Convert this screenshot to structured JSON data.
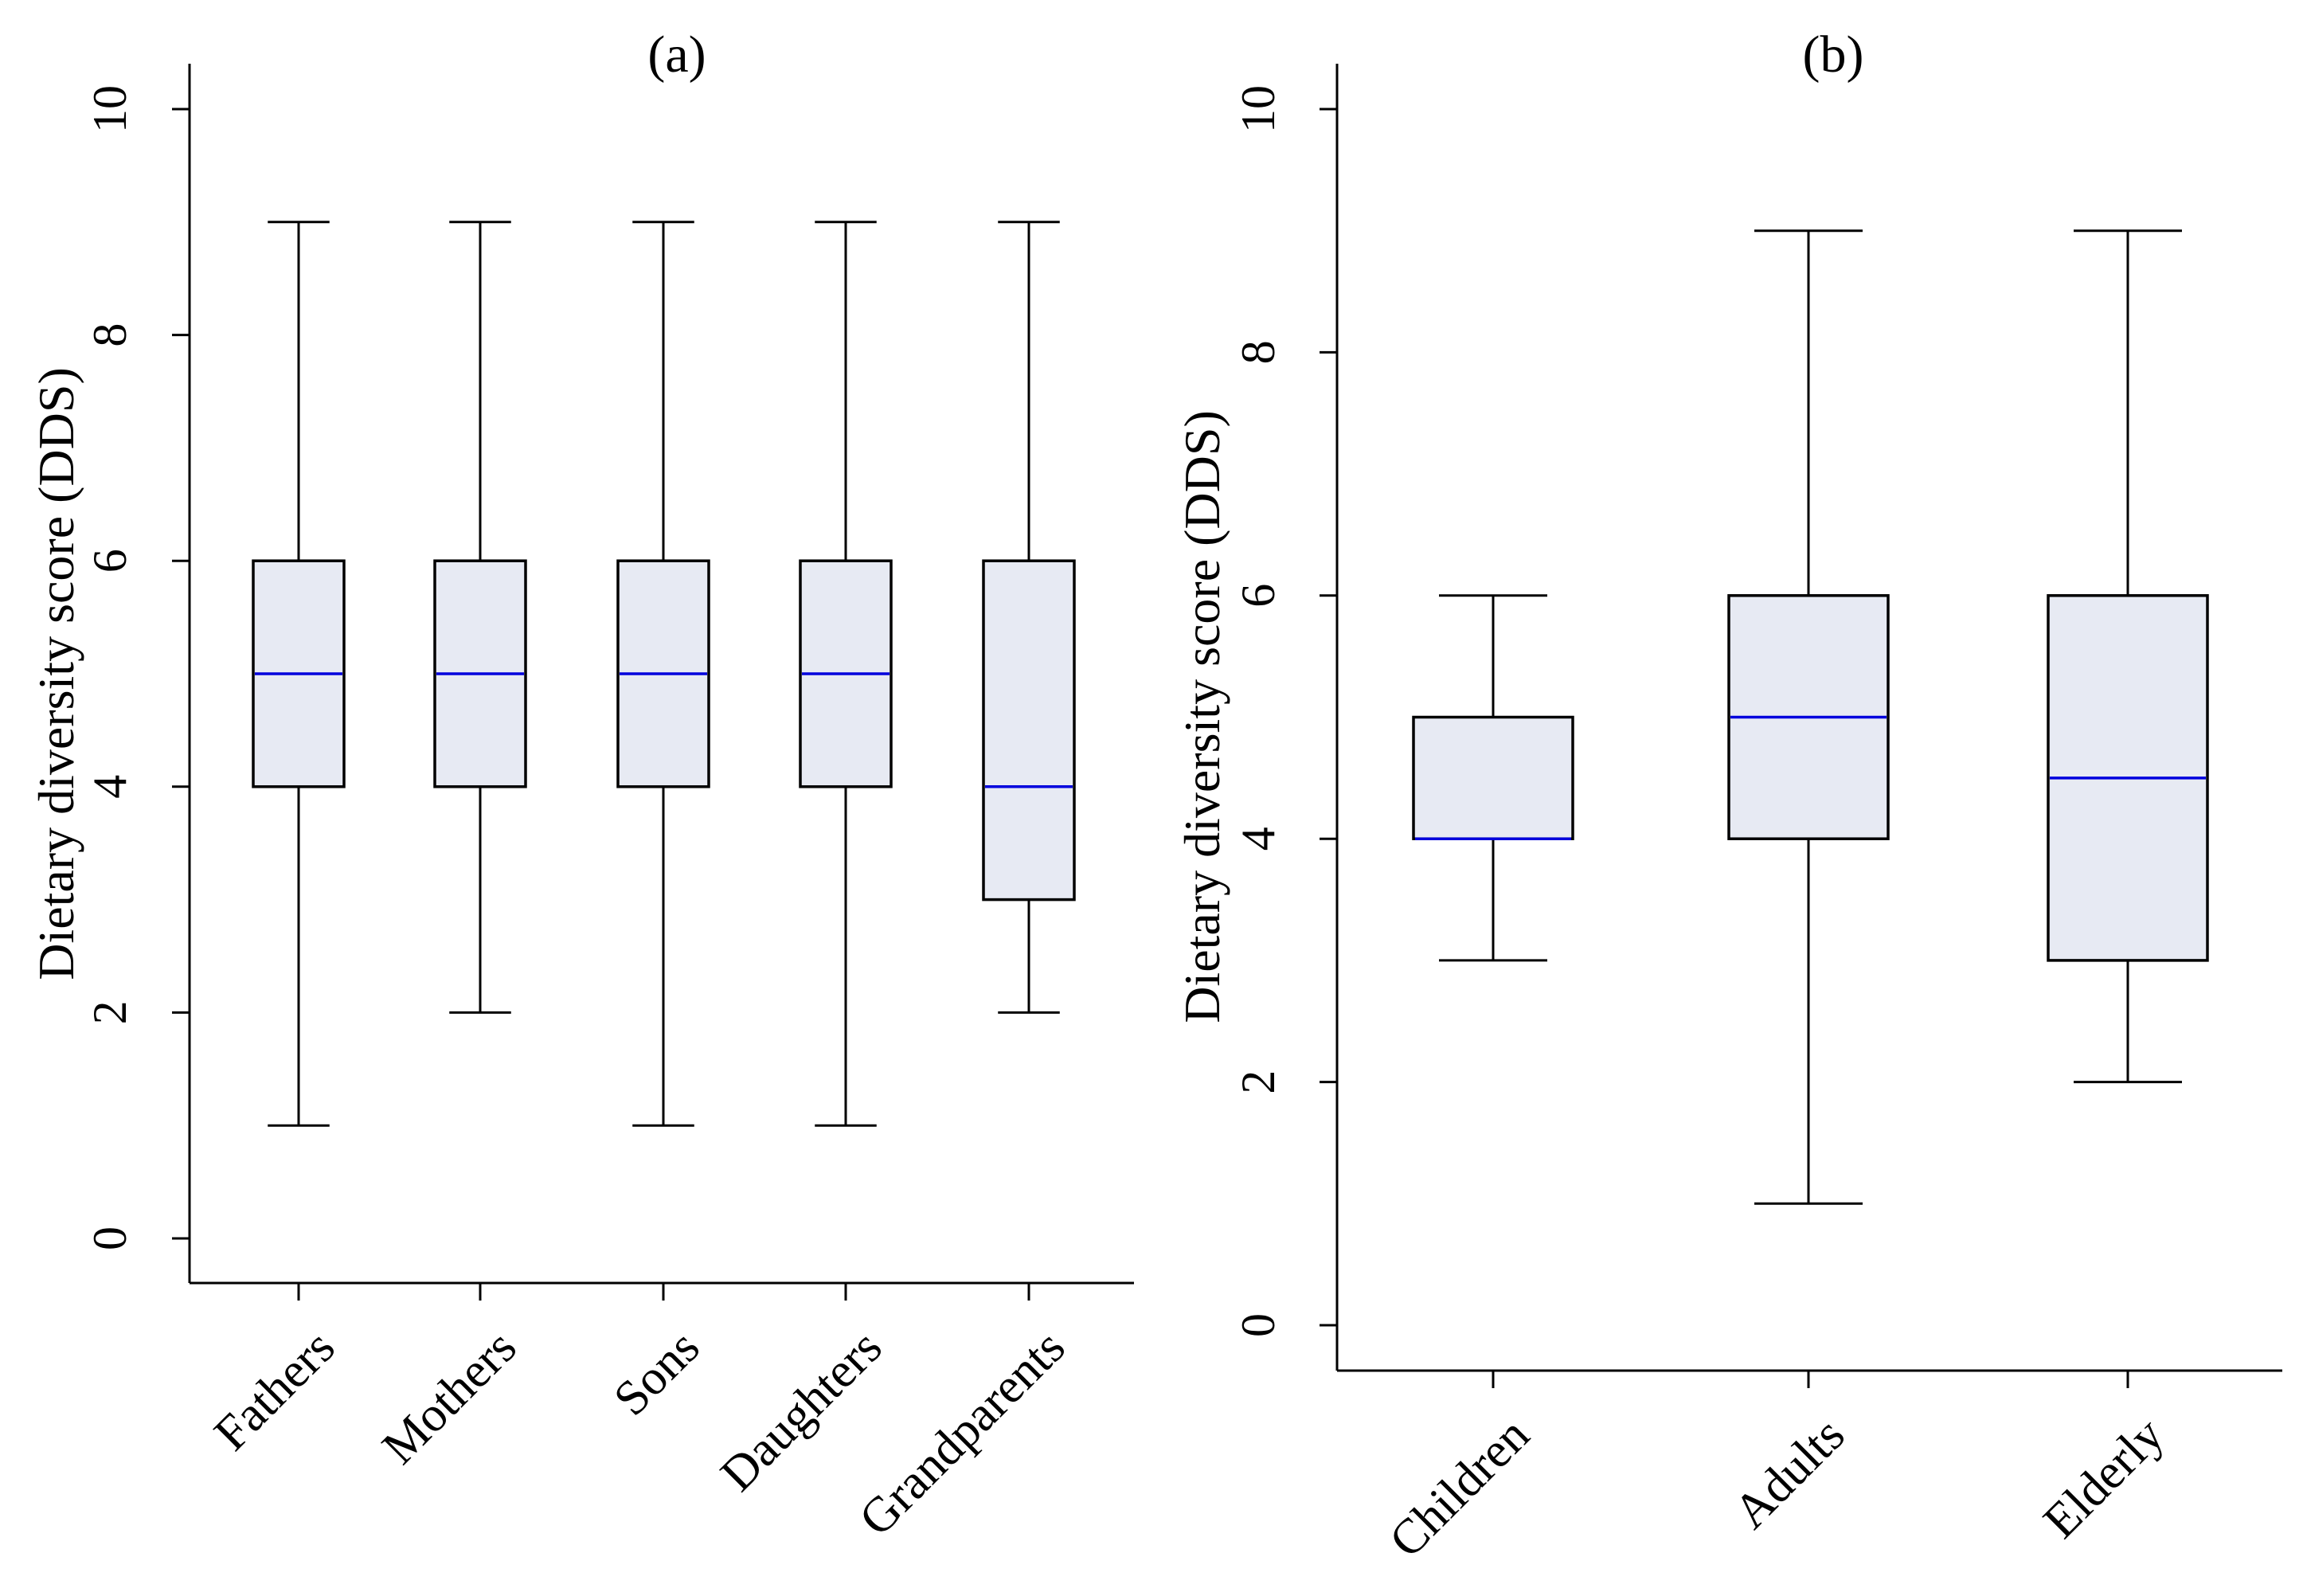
{
  "chart_data": [
    {
      "type": "box",
      "title": "(a)",
      "xlabel": "",
      "ylabel": "Dietary diversity score (DDS)",
      "ylim": [
        0,
        10
      ],
      "yticks": [
        0,
        2,
        4,
        6,
        8,
        10
      ],
      "ytick_labels": [
        "0",
        "2",
        "4",
        "6",
        "8",
        "10"
      ],
      "grid": false,
      "categories": [
        "Fathers",
        "Mothers",
        "Sons",
        "Daughters",
        "Grandparents"
      ],
      "boxes": [
        {
          "label": "Fathers",
          "min": 1,
          "q1": 4,
          "median": 5,
          "q3": 6,
          "max": 9
        },
        {
          "label": "Mothers",
          "min": 2,
          "q1": 4,
          "median": 5,
          "q3": 6,
          "max": 9
        },
        {
          "label": "Sons",
          "min": 1,
          "q1": 4,
          "median": 5,
          "q3": 6,
          "max": 9
        },
        {
          "label": "Daughters",
          "min": 1,
          "q1": 4,
          "median": 5,
          "q3": 6,
          "max": 9
        },
        {
          "label": "Grandparents",
          "min": 2,
          "q1": 3,
          "median": 4,
          "q3": 6,
          "max": 9
        }
      ]
    },
    {
      "type": "box",
      "title": "(b)",
      "xlabel": "",
      "ylabel": "Dietary diversity score (DDS)",
      "ylim": [
        0,
        10
      ],
      "yticks": [
        0,
        2,
        4,
        6,
        8,
        10
      ],
      "ytick_labels": [
        "0",
        "2",
        "4",
        "6",
        "8",
        "10"
      ],
      "grid": false,
      "categories": [
        "Children",
        "Adults",
        "Elderly"
      ],
      "boxes": [
        {
          "label": "Children",
          "min": 3,
          "q1": 4,
          "median": 4,
          "q3": 5,
          "max": 6
        },
        {
          "label": "Adults",
          "min": 1,
          "q1": 4,
          "median": 5,
          "q3": 6,
          "max": 9
        },
        {
          "label": "Elderly",
          "min": 2,
          "q1": 3,
          "median": 4.5,
          "q3": 6,
          "max": 9
        }
      ]
    }
  ],
  "colors": {
    "box_fill": "#e7eaf3",
    "box_stroke": "#000000",
    "median": "#0000dd",
    "axis": "#000000"
  }
}
